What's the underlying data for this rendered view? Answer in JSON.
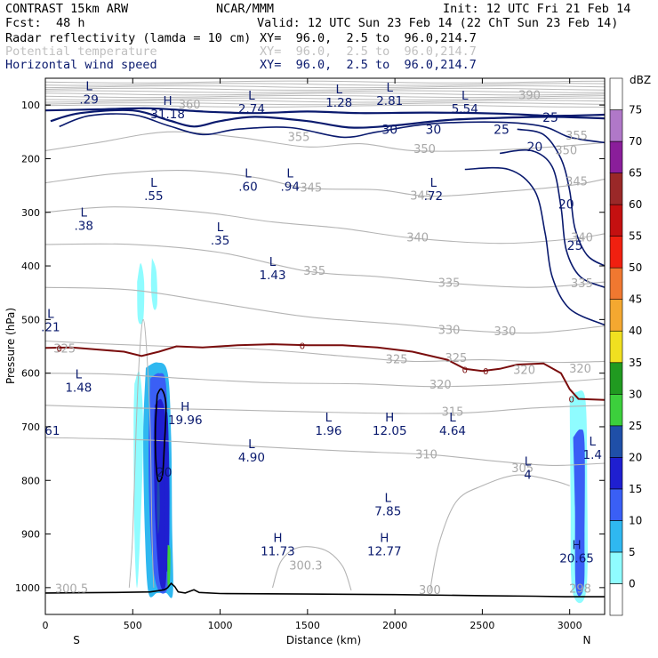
{
  "header": {
    "model": "CONTRAST 15km ARW",
    "org": "NCAR/MMM",
    "init": "Init: 12 UTC Fri 21 Feb 14",
    "fcst_label": "Fcst:",
    "fcst_value": "48 h",
    "valid": "Valid: 12 UTC Sun 23 Feb 14 (22 ChT Sun 23 Feb 14)",
    "fields": [
      {
        "name": "Radar reflectivity (lamda = 10 cm)",
        "xy": "XY=  96.0,  2.5 to  96.0,214.7"
      },
      {
        "name": "Potential temperature",
        "xy": "XY=  96.0,  2.5 to  96.0,214.7"
      },
      {
        "name": "Horizontal wind speed",
        "xy": "XY=  96.0,  2.5 to  96.0,214.7"
      }
    ]
  },
  "chart_data": {
    "type": "cross-section",
    "title": "Radar reflectivity (lamda = 10 cm) / Potential temperature / Horizontal wind speed",
    "xlabel": "Distance (km)",
    "ylabel": "Pressure (hPa)",
    "xlim": [
      0,
      3200
    ],
    "ylim": [
      1050,
      50
    ],
    "x_ticks": [
      0,
      500,
      1000,
      1500,
      2000,
      2500,
      3000
    ],
    "y_ticks": [
      100,
      200,
      300,
      400,
      500,
      600,
      700,
      800,
      900,
      1000
    ],
    "x_end_labels": {
      "left": "S",
      "right": "N"
    },
    "colorbar": {
      "unit": "dBZ",
      "levels": [
        0,
        5,
        10,
        15,
        20,
        25,
        30,
        35,
        40,
        45,
        50,
        55,
        60,
        65,
        70,
        75
      ],
      "colors": [
        "#ffffff",
        "#8ffcff",
        "#2fb8f0",
        "#3a5ff5",
        "#1f1fd0",
        "#1f4fa8",
        "#3ccf3c",
        "#209a20",
        "#f0e020",
        "#f4a830",
        "#f07830",
        "#f02010",
        "#c41010",
        "#9a2828",
        "#8a1e9a",
        "#b078c8",
        "#ffffff"
      ]
    },
    "theta_labels": [
      {
        "label": "360",
        "x": 825,
        "p": 100
      },
      {
        "label": "390",
        "x": 2770,
        "p": 82
      },
      {
        "label": "355",
        "x": 1450,
        "p": 160
      },
      {
        "label": "355",
        "x": 3040,
        "p": 158
      },
      {
        "label": "350",
        "x": 2170,
        "p": 183
      },
      {
        "label": "350",
        "x": 2980,
        "p": 185
      },
      {
        "label": "345",
        "x": 1520,
        "p": 255
      },
      {
        "label": "345",
        "x": 2150,
        "p": 270
      },
      {
        "label": "345",
        "x": 3040,
        "p": 243
      },
      {
        "label": "340",
        "x": 2130,
        "p": 348
      },
      {
        "label": "340",
        "x": 3070,
        "p": 348
      },
      {
        "label": "335",
        "x": 1540,
        "p": 410
      },
      {
        "label": "335",
        "x": 2310,
        "p": 432
      },
      {
        "label": "335",
        "x": 3070,
        "p": 433
      },
      {
        "label": "330",
        "x": 2310,
        "p": 520
      },
      {
        "label": "330",
        "x": 2630,
        "p": 523
      },
      {
        "label": "325",
        "x": 110,
        "p": 555
      },
      {
        "label": "325",
        "x": 2010,
        "p": 575
      },
      {
        "label": "325",
        "x": 2350,
        "p": 572
      },
      {
        "label": "320",
        "x": 2260,
        "p": 622
      },
      {
        "label": "320",
        "x": 2740,
        "p": 595
      },
      {
        "label": "320",
        "x": 3060,
        "p": 592
      },
      {
        "label": "315",
        "x": 2330,
        "p": 673
      },
      {
        "label": "310",
        "x": 2180,
        "p": 752
      },
      {
        "label": "305",
        "x": 2730,
        "p": 778
      },
      {
        "label": "300.3",
        "x": 1490,
        "p": 960
      },
      {
        "label": "300",
        "x": 2200,
        "p": 1005
      },
      {
        "label": "300.5",
        "x": 150,
        "p": 1003
      },
      {
        "label": "298",
        "x": 3060,
        "p": 1003
      }
    ],
    "wind_labels": [
      {
        "label": "25",
        "x": 2890,
        "p": 123
      },
      {
        "label": "30",
        "x": 1970,
        "p": 145
      },
      {
        "label": "30",
        "x": 2220,
        "p": 145
      },
      {
        "label": "25",
        "x": 2610,
        "p": 145
      },
      {
        "label": "20",
        "x": 2800,
        "p": 178
      },
      {
        "label": "20",
        "x": 2980,
        "p": 285
      },
      {
        "label": "25",
        "x": 3030,
        "p": 362
      },
      {
        "label": "20",
        "x": 680,
        "p": 785
      }
    ],
    "freezing_level_labels": [
      {
        "label": "0",
        "x": 80,
        "p": 553
      },
      {
        "label": "0",
        "x": 1470,
        "p": 548
      },
      {
        "label": "0",
        "x": 2400,
        "p": 593
      },
      {
        "label": "0",
        "x": 2520,
        "p": 596
      },
      {
        "label": "0",
        "x": 3010,
        "p": 648
      }
    ],
    "extrema": [
      {
        "type": "L",
        "value": ".29",
        "x": 250,
        "p": 82
      },
      {
        "type": "H",
        "value": "31.18",
        "x": 700,
        "p": 110
      },
      {
        "type": "L",
        "value": "2.74",
        "x": 1180,
        "p": 100
      },
      {
        "type": "L",
        "value": "1.28",
        "x": 1680,
        "p": 88
      },
      {
        "type": "L",
        "value": "2.81",
        "x": 1970,
        "p": 85
      },
      {
        "type": "L",
        "value": "5.54",
        "x": 2400,
        "p": 100
      },
      {
        "type": "L",
        "value": ".55",
        "x": 620,
        "p": 262
      },
      {
        "type": "L",
        "value": ".60",
        "x": 1160,
        "p": 245
      },
      {
        "type": "L",
        "value": ".94",
        "x": 1400,
        "p": 245
      },
      {
        "type": "L",
        "value": ".72",
        "x": 2220,
        "p": 262
      },
      {
        "type": "L",
        "value": ".38",
        "x": 220,
        "p": 318
      },
      {
        "type": "L",
        "value": ".35",
        "x": 1000,
        "p": 345
      },
      {
        "type": "L",
        "value": "1.43",
        "x": 1300,
        "p": 410
      },
      {
        "type": "L",
        "value": ".21",
        "x": 30,
        "p": 507
      },
      {
        "type": "L",
        "value": "1.48",
        "x": 190,
        "p": 620
      },
      {
        "type": "H",
        "value": "19.96",
        "x": 800,
        "p": 680
      },
      {
        "type": "L",
        "value": "1.96",
        "x": 1620,
        "p": 700
      },
      {
        "type": "H",
        "value": "12.05",
        "x": 1970,
        "p": 700
      },
      {
        "type": "L",
        "value": "4.64",
        "x": 2330,
        "p": 700
      },
      {
        "type": "L",
        "value": "4.90",
        "x": 1180,
        "p": 750
      },
      {
        "type": "L",
        "value": "7.85",
        "x": 1960,
        "p": 850
      },
      {
        "type": "H",
        "value": "11.73",
        "x": 1330,
        "p": 925
      },
      {
        "type": "H",
        "value": "12.77",
        "x": 1940,
        "p": 925
      },
      {
        "type": "H",
        "value": "20.65",
        "x": 3040,
        "p": 938
      },
      {
        "type": "L",
        "value": "4",
        "x": 2760,
        "p": 782
      },
      {
        "type": "L",
        "value": "1.4",
        "x": 3130,
        "p": 745
      },
      {
        "type": "",
        "value": "61",
        "x": 40,
        "p": 700
      }
    ],
    "terrain_pressure": [
      [
        0,
        1010
      ],
      [
        400,
        1009
      ],
      [
        600,
        1008
      ],
      [
        680,
        1004
      ],
      [
        700,
        1000
      ],
      [
        720,
        992
      ],
      [
        740,
        998
      ],
      [
        760,
        1008
      ],
      [
        800,
        1010
      ],
      [
        850,
        1004
      ],
      [
        880,
        1009
      ],
      [
        1000,
        1011
      ],
      [
        1500,
        1012
      ],
      [
        2000,
        1013
      ],
      [
        2500,
        1015
      ],
      [
        2800,
        1016
      ],
      [
        3000,
        1017
      ],
      [
        3200,
        1017
      ]
    ]
  }
}
